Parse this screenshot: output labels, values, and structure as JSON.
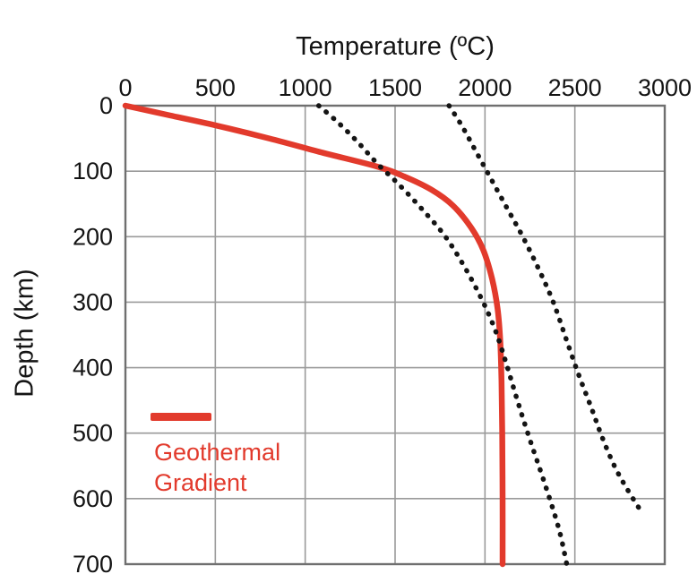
{
  "figure": {
    "title": "Temperature (ºC)",
    "y_axis_label": "Depth (km)",
    "legend": {
      "line1": "Geothermal",
      "line2": "Gradient"
    }
  },
  "colors": {
    "gradient_line": "#e23a2c",
    "dotted_line": "#141414",
    "grid": "#9a9a9a",
    "border": "#6f6f6f",
    "text": "#141414"
  },
  "chart_data": {
    "type": "line",
    "title": "Temperature (ºC)",
    "xlabel": "Temperature (ºC)",
    "ylabel": "Depth (km)",
    "xlim": [
      0,
      3000
    ],
    "ylim": [
      0,
      700
    ],
    "y_axis_inverted": true,
    "x_ticks": [
      0,
      500,
      1000,
      1500,
      2000,
      2500,
      3000
    ],
    "y_ticks": [
      0,
      100,
      200,
      300,
      400,
      500,
      600,
      700
    ],
    "grid": true,
    "legend_position": "inside-lower-left",
    "series": [
      {
        "name": "Geothermal Gradient",
        "style": "solid",
        "color": "#e23a2c",
        "width": 6.5,
        "points": [
          [
            0,
            0
          ],
          [
            250,
            15
          ],
          [
            500,
            30
          ],
          [
            800,
            50
          ],
          [
            1100,
            72
          ],
          [
            1400,
            93
          ],
          [
            1550,
            108
          ],
          [
            1700,
            128
          ],
          [
            1820,
            152
          ],
          [
            1920,
            185
          ],
          [
            1990,
            220
          ],
          [
            2040,
            265
          ],
          [
            2070,
            310
          ],
          [
            2085,
            360
          ],
          [
            2092,
            420
          ],
          [
            2096,
            500
          ],
          [
            2098,
            600
          ],
          [
            2098,
            700
          ]
        ]
      },
      {
        "name": "dotted-curve-left",
        "style": "dotted",
        "color": "#141414",
        "width": 5.5,
        "points": [
          [
            1075,
            0
          ],
          [
            1180,
            25
          ],
          [
            1290,
            55
          ],
          [
            1400,
            88
          ],
          [
            1520,
            120
          ],
          [
            1650,
            158
          ],
          [
            1780,
            200
          ],
          [
            1890,
            248
          ],
          [
            1990,
            300
          ],
          [
            2060,
            345
          ],
          [
            2120,
            395
          ],
          [
            2180,
            450
          ],
          [
            2250,
            510
          ],
          [
            2330,
            575
          ],
          [
            2410,
            645
          ],
          [
            2455,
            700
          ]
        ]
      },
      {
        "name": "dotted-curve-right",
        "style": "dotted",
        "color": "#141414",
        "width": 5.5,
        "points": [
          [
            1800,
            0
          ],
          [
            1870,
            30
          ],
          [
            1950,
            70
          ],
          [
            2030,
            110
          ],
          [
            2120,
            155
          ],
          [
            2210,
            200
          ],
          [
            2300,
            250
          ],
          [
            2380,
            300
          ],
          [
            2450,
            355
          ],
          [
            2520,
            410
          ],
          [
            2590,
            460
          ],
          [
            2650,
            505
          ],
          [
            2720,
            550
          ],
          [
            2790,
            585
          ],
          [
            2870,
            620
          ]
        ]
      }
    ]
  }
}
